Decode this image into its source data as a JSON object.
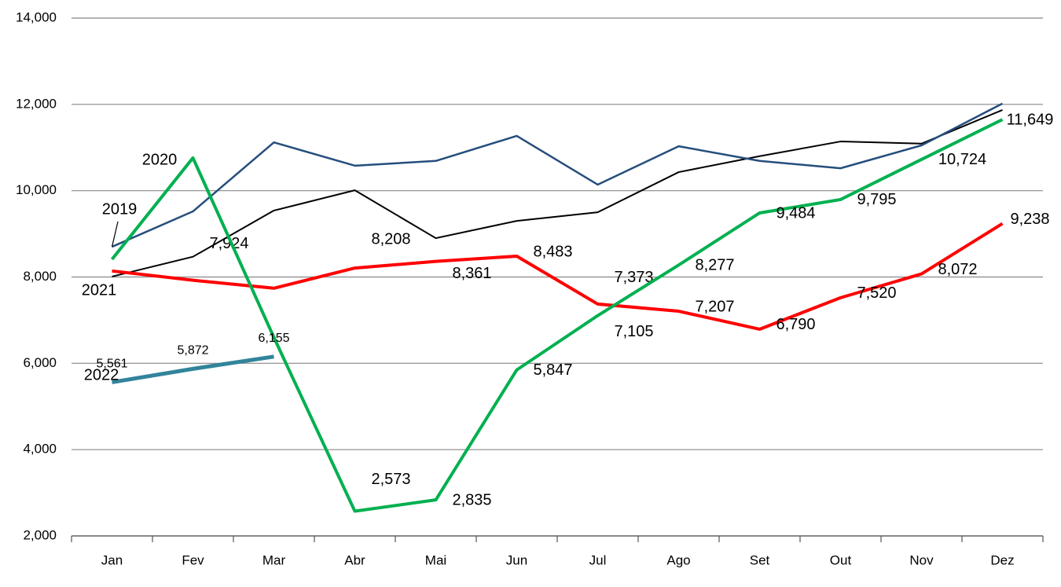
{
  "chart_data": {
    "type": "line",
    "categories": [
      "Jan",
      "Fev",
      "Mar",
      "Abr",
      "Mai",
      "Jun",
      "Jul",
      "Ago",
      "Set",
      "Out",
      "Nov",
      "Dez"
    ],
    "ylim": [
      2000,
      14000
    ],
    "yticks": [
      {
        "value": 2000,
        "label": "2,000"
      },
      {
        "value": 4000,
        "label": "4,000"
      },
      {
        "value": 6000,
        "label": "6,000"
      },
      {
        "value": 8000,
        "label": "8,000"
      },
      {
        "value": 10000,
        "label": "10,000"
      },
      {
        "value": 12000,
        "label": "12,000"
      },
      {
        "value": 14000,
        "label": "14,000"
      }
    ],
    "grid": true,
    "series": [
      {
        "color": "#000000",
        "values": [
          8010,
          8470,
          9540,
          10010,
          8900,
          9300,
          9500,
          10430,
          10800,
          11140,
          11090,
          11870
        ]
      },
      {
        "name": "2019",
        "color": "#254e7d",
        "values": [
          8700,
          9520,
          11120,
          10580,
          10690,
          11270,
          10140,
          11030,
          10690,
          10520,
          11050,
          12020
        ]
      },
      {
        "name": "2021",
        "color": "#ff0000",
        "values": [
          8140,
          7924,
          7740,
          8208,
          8361,
          8483,
          7373,
          7207,
          6790,
          7520,
          8072,
          9238
        ],
        "value_labels": [
          null,
          "7,924",
          null,
          "8,208",
          "8,361",
          "8,483",
          "7,373",
          "7,207",
          "6,790",
          "7,520",
          "8,072",
          "9,238"
        ]
      },
      {
        "name": "2020",
        "color": "#00b050",
        "values": [
          8410,
          10760,
          6600,
          2573,
          2835,
          5847,
          7105,
          8277,
          9484,
          9795,
          10724,
          11649
        ],
        "value_labels": [
          null,
          null,
          null,
          "2,573",
          "2,835",
          "5,847",
          "7,105",
          "8,277",
          "9,484",
          "9,795",
          "10,724",
          "11,649"
        ]
      },
      {
        "name": "2022",
        "color": "#31849b",
        "values": [
          5561,
          5872,
          6155,
          null,
          null,
          null,
          null,
          null,
          null,
          null,
          null,
          null
        ],
        "value_labels": [
          "5,561",
          "5,872",
          "6,155",
          null,
          null,
          null,
          null,
          null,
          null,
          null,
          null,
          null
        ]
      }
    ]
  }
}
